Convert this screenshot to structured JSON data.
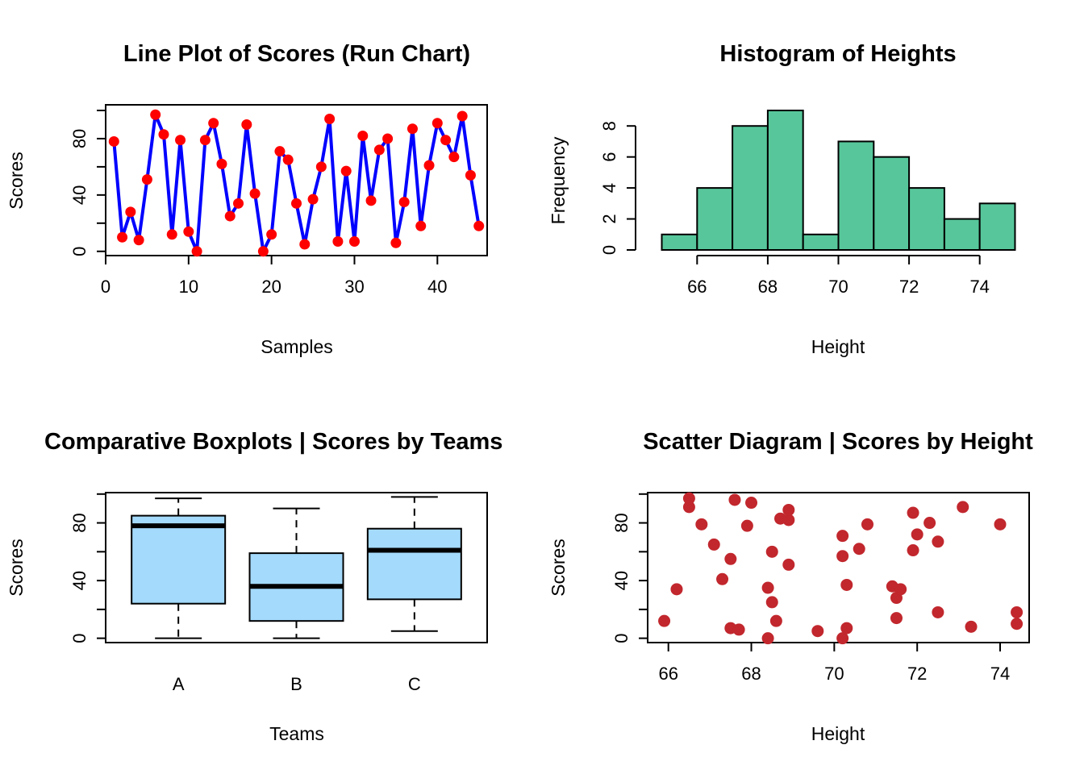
{
  "chart_data": [
    {
      "type": "line",
      "title": "Line Plot of Scores (Run Chart)",
      "xlabel": "Samples",
      "ylabel": "Scores",
      "xlim": [
        0,
        46
      ],
      "ylim": [
        -3,
        104
      ],
      "xticks": [
        0,
        10,
        20,
        30,
        40
      ],
      "yticks": [
        0,
        20,
        40,
        60,
        80,
        100
      ],
      "ytick_labels": [
        "0",
        "",
        "40",
        "",
        "80",
        ""
      ],
      "line_color": "#0000FF",
      "point_color": "#FF0000",
      "series": [
        {
          "x": [
            1,
            2,
            3,
            4,
            5,
            6,
            7,
            8,
            9,
            10,
            11,
            12,
            13,
            14,
            15,
            16,
            17,
            18,
            19,
            20,
            21,
            22,
            23,
            24,
            25,
            26,
            27,
            28,
            29,
            30,
            31,
            32,
            33,
            34,
            35,
            36,
            37,
            38,
            39,
            40,
            41,
            42,
            43,
            44,
            45
          ],
          "values": [
            78,
            10,
            28,
            8,
            51,
            97,
            83,
            12,
            79,
            14,
            0,
            79,
            91,
            62,
            25,
            34,
            90,
            41,
            0,
            12,
            71,
            65,
            34,
            5,
            37,
            60,
            94,
            7,
            57,
            7,
            82,
            36,
            72,
            80,
            6,
            35,
            87,
            18,
            61,
            91,
            79,
            67,
            96,
            54,
            18
          ]
        }
      ]
    },
    {
      "type": "bar",
      "title": "Histogram of Heights",
      "xlabel": "Height",
      "ylabel": "Frequency",
      "bin_edges": [
        65,
        66,
        67,
        68,
        69,
        70,
        71,
        72,
        73,
        74,
        75
      ],
      "values": [
        1,
        4,
        8,
        9,
        1,
        7,
        6,
        4,
        2,
        3
      ],
      "xlim": [
        64.6,
        75.4
      ],
      "ylim": [
        0,
        9.4
      ],
      "xticks": [
        66,
        68,
        70,
        72,
        74
      ],
      "yticks": [
        0,
        2,
        4,
        6,
        8
      ],
      "bar_color": "#57C79B"
    },
    {
      "type": "box",
      "title": "Comparative Boxplots | Scores by Teams",
      "xlabel": "Teams",
      "ylabel": "Scores",
      "categories": [
        "A",
        "B",
        "C"
      ],
      "boxes": [
        {
          "min": 0,
          "q1": 24,
          "median": 78,
          "q3": 85,
          "max": 97
        },
        {
          "min": 0,
          "q1": 12,
          "median": 36,
          "q3": 59,
          "max": 90
        },
        {
          "min": 5,
          "q1": 27,
          "median": 61,
          "q3": 76,
          "max": 98
        }
      ],
      "ylim": [
        -3,
        101
      ],
      "yticks": [
        0,
        20,
        40,
        60,
        80,
        100
      ],
      "ytick_labels": [
        "0",
        "",
        "40",
        "",
        "80",
        ""
      ],
      "box_color": "#A4DAFC"
    },
    {
      "type": "scatter",
      "title": "Scatter Diagram | Scores by Height",
      "xlabel": "Height",
      "ylabel": "Scores",
      "xlim": [
        65.5,
        74.7
      ],
      "ylim": [
        -3,
        101
      ],
      "xticks": [
        66,
        68,
        70,
        72,
        74
      ],
      "yticks": [
        0,
        20,
        40,
        60,
        80,
        100
      ],
      "ytick_labels": [
        "0",
        "",
        "40",
        "",
        "80",
        ""
      ],
      "point_color": "#C1272D",
      "series": [
        {
          "x": [
            65.9,
            66.2,
            66.5,
            66.5,
            66.8,
            67.1,
            67.3,
            67.5,
            67.5,
            67.6,
            67.7,
            67.9,
            68.0,
            68.4,
            68.4,
            68.5,
            68.5,
            68.6,
            68.7,
            68.9,
            68.9,
            68.9,
            69.6,
            70.2,
            70.2,
            70.2,
            70.3,
            70.3,
            70.6,
            70.8,
            71.4,
            71.5,
            71.5,
            71.6,
            71.9,
            71.9,
            72.0,
            72.3,
            72.5,
            72.5,
            73.1,
            73.3,
            74.0,
            74.4,
            74.4
          ],
          "y": [
            12,
            34,
            91,
            97,
            79,
            65,
            41,
            7,
            55,
            96,
            6,
            78,
            94,
            0,
            35,
            25,
            60,
            12,
            83,
            51,
            82,
            89,
            5,
            0,
            71,
            57,
            37,
            7,
            62,
            79,
            36,
            28,
            14,
            34,
            87,
            61,
            72,
            80,
            67,
            18,
            91,
            8,
            79,
            10,
            18
          ]
        }
      ]
    }
  ]
}
